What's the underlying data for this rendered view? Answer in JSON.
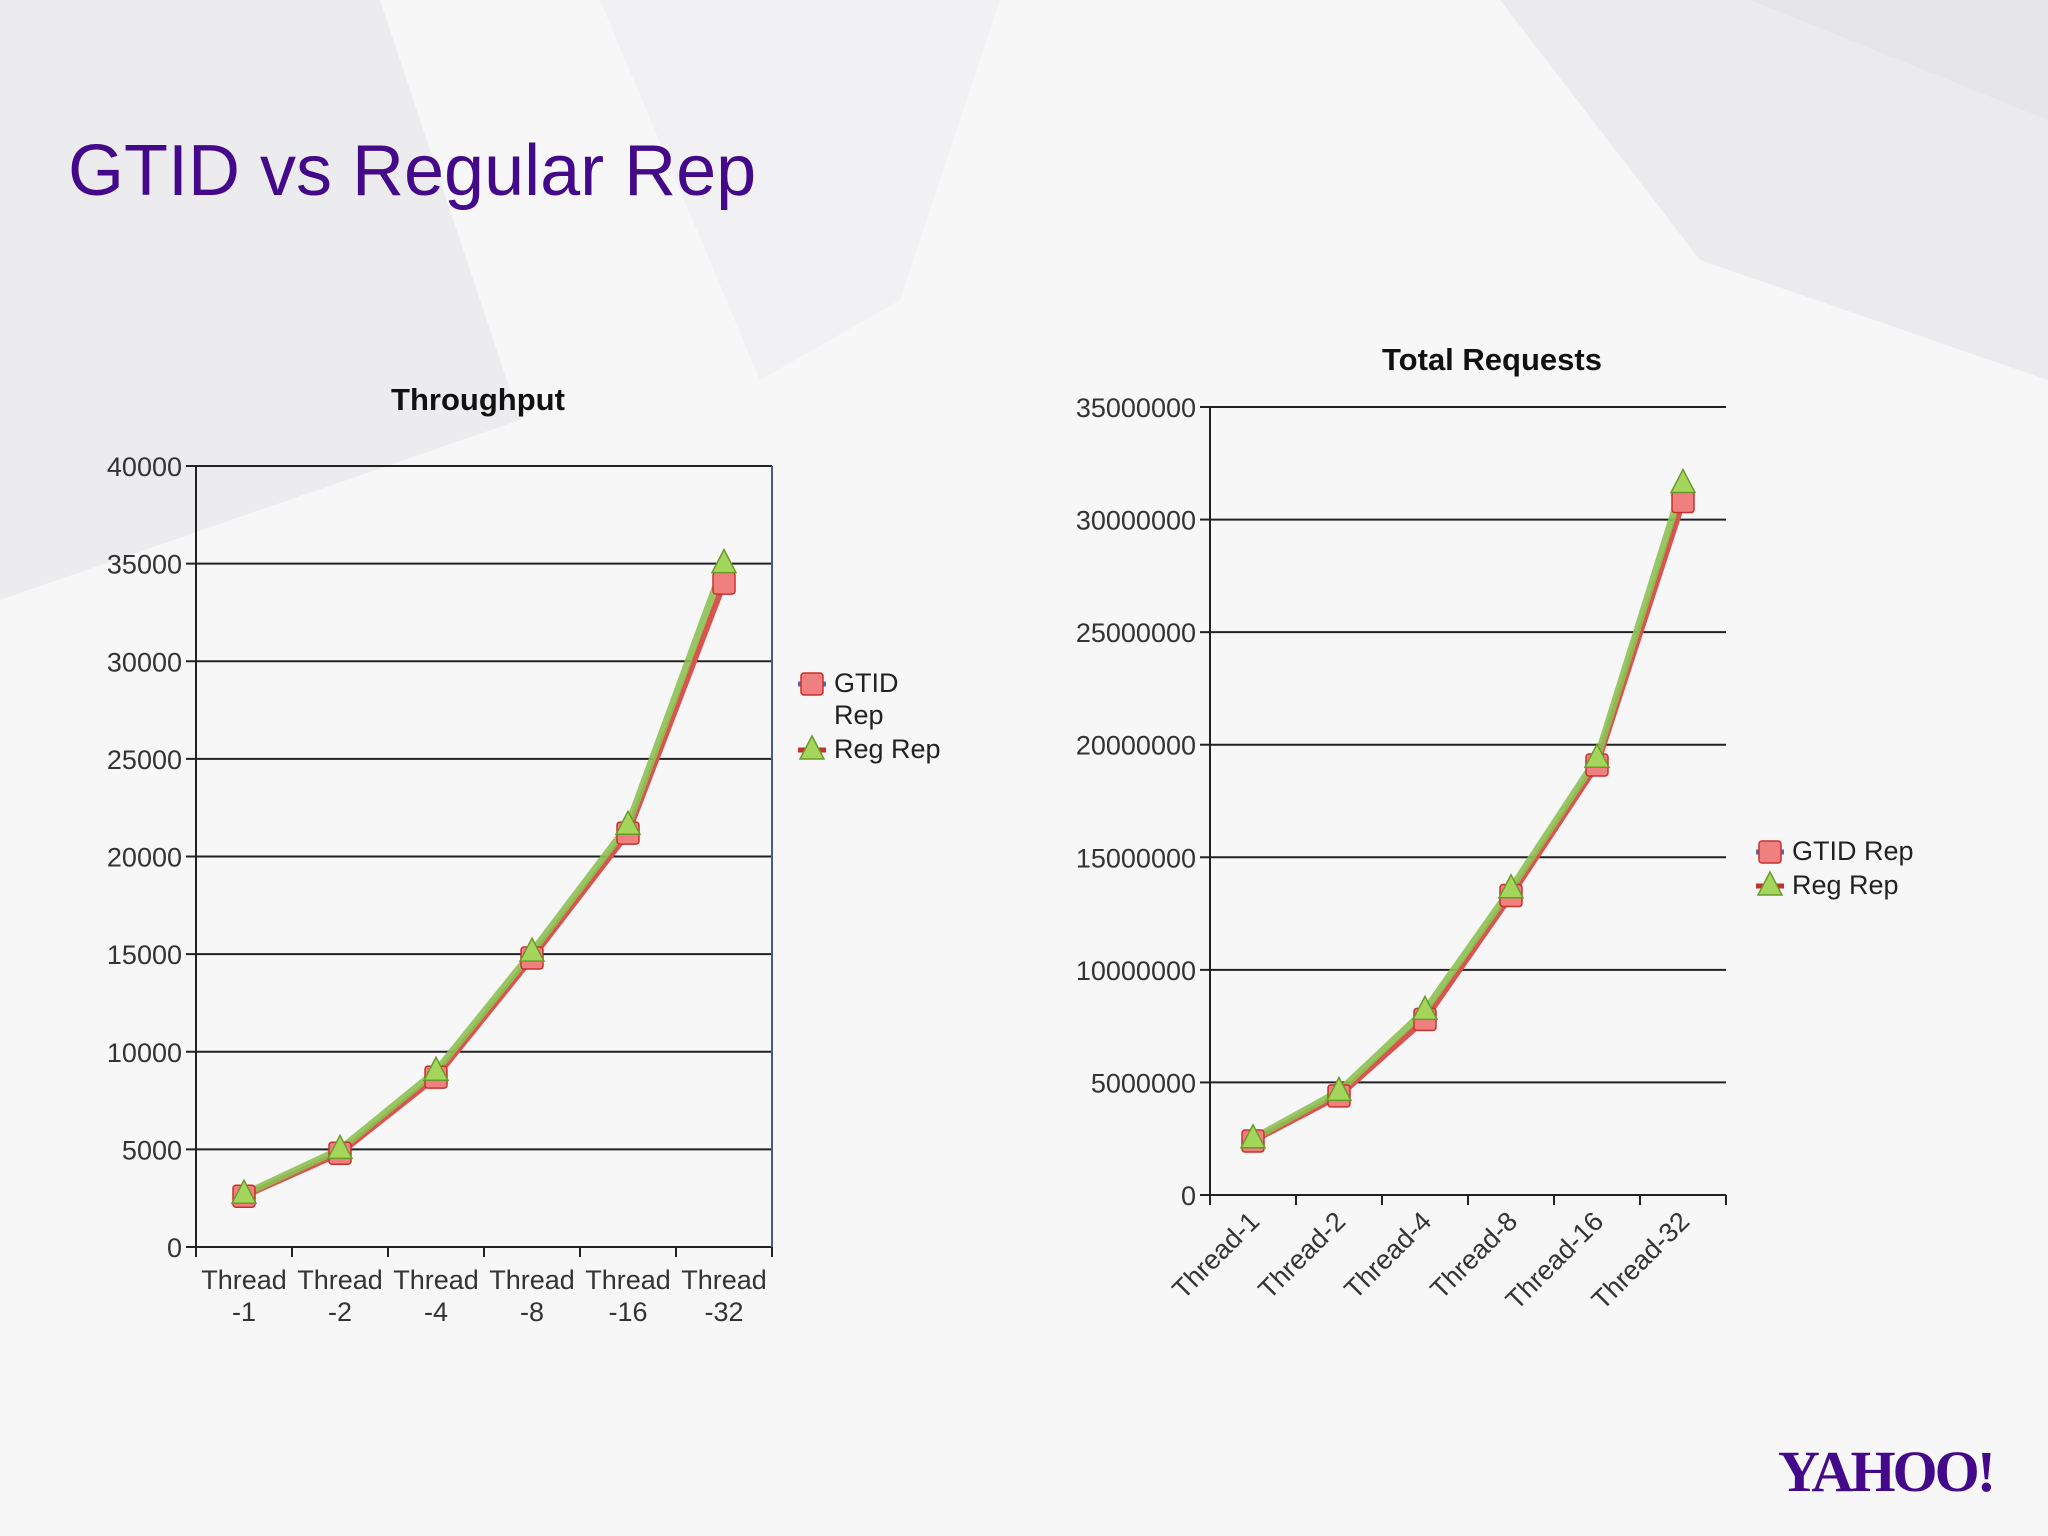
{
  "slide": {
    "title": "GTID vs Regular Rep",
    "logo_text": "YAHOO!"
  },
  "colors": {
    "title": "#44098a",
    "gtid_series": "#d9534f",
    "reg_series": "#8cc152"
  },
  "chart_data": [
    {
      "type": "line",
      "title": "Throughput",
      "categories": [
        "Thread-1",
        "Thread-2",
        "Thread-4",
        "Thread-8",
        "Thread-16",
        "Thread-32"
      ],
      "category_lines": [
        [
          "Thread",
          "-1"
        ],
        [
          "Thread",
          "-2"
        ],
        [
          "Thread",
          "-4"
        ],
        [
          "Thread",
          "-8"
        ],
        [
          "Thread",
          "-16"
        ],
        [
          "Thread",
          "-32"
        ]
      ],
      "series": [
        {
          "name": "GTID Rep",
          "legend_lines": [
            "GTID",
            "Rep"
          ],
          "values": [
            2600,
            4800,
            8700,
            14800,
            21200,
            34000
          ]
        },
        {
          "name": "Reg Rep",
          "legend_lines": [
            "Reg Rep"
          ],
          "values": [
            2700,
            5000,
            9000,
            15100,
            21600,
            35000
          ]
        }
      ],
      "ylim": [
        0,
        40000
      ],
      "yticks": [
        0,
        5000,
        10000,
        15000,
        20000,
        25000,
        30000,
        35000,
        40000
      ],
      "ytick_labels": [
        "0",
        "5000",
        "10000",
        "15000",
        "20000",
        "25000",
        "30000",
        "35000",
        "40000"
      ],
      "xlabel": "",
      "ylabel": "",
      "grid": true,
      "legend_position": "right"
    },
    {
      "type": "line",
      "title": "Total Requests",
      "categories": [
        "Thread-1",
        "Thread-2",
        "Thread-4",
        "Thread-8",
        "Thread-16",
        "Thread-32"
      ],
      "series": [
        {
          "name": "GTID Rep",
          "legend_lines": [
            "GTID Rep"
          ],
          "values": [
            2400000,
            4400000,
            7800000,
            13300000,
            19100000,
            30800000
          ]
        },
        {
          "name": "Reg Rep",
          "legend_lines": [
            "Reg Rep"
          ],
          "values": [
            2500000,
            4600000,
            8200000,
            13600000,
            19400000,
            31600000
          ]
        }
      ],
      "ylim": [
        0,
        35000000
      ],
      "yticks": [
        0,
        5000000,
        10000000,
        15000000,
        20000000,
        25000000,
        30000000,
        35000000
      ],
      "ytick_labels": [
        "0",
        "5000000",
        "10000000",
        "15000000",
        "20000000",
        "25000000",
        "30000000",
        "35000000"
      ],
      "xlabel": "",
      "ylabel": "",
      "grid": true,
      "legend_position": "right",
      "xtick_rotation": "rotated"
    }
  ]
}
